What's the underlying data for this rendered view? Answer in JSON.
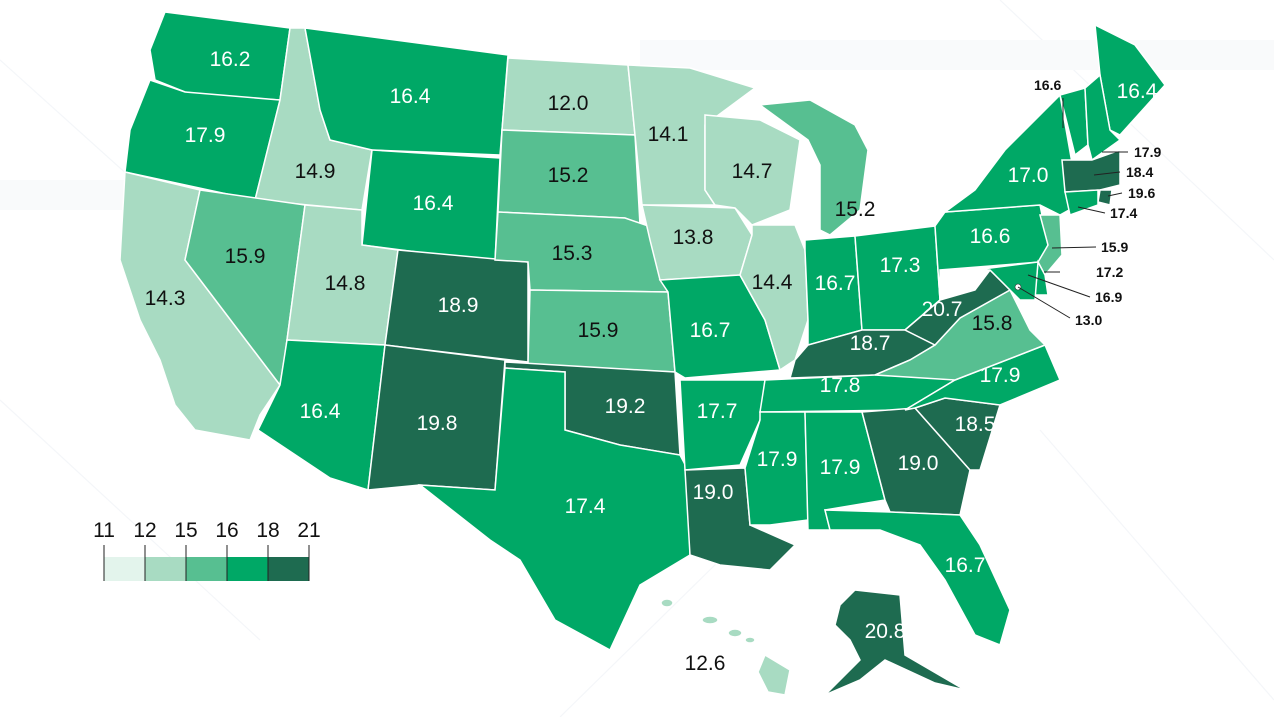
{
  "colors": {
    "c11_12": "#e3f4ec",
    "c12_15": "#a8dbc2",
    "c15_16": "#57bf91",
    "c16_18": "#00a866",
    "c18_21": "#1e6b50"
  },
  "legend": {
    "ticks": [
      "11",
      "12",
      "15",
      "16",
      "18",
      "21"
    ]
  },
  "states": {
    "WA": "16.2",
    "OR": "17.9",
    "CA": "14.3",
    "ID": "14.9",
    "NV": "15.9",
    "MT": "16.4",
    "WY": "16.4",
    "UT": "14.8",
    "AZ": "16.4",
    "CO": "18.9",
    "NM": "19.8",
    "ND": "12.0",
    "SD": "15.2",
    "NE": "15.3",
    "KS": "15.9",
    "OK": "19.2",
    "TX": "17.4",
    "MN": "14.1",
    "IA": "13.8",
    "MO": "16.7",
    "AR": "17.7",
    "LA": "19.0",
    "WI": "14.7",
    "IL": "14.4",
    "MI": "15.2",
    "IN": "16.7",
    "OH": "17.3",
    "KY": "18.7",
    "TN": "17.8",
    "MS": "17.9",
    "AL": "17.9",
    "GA": "19.0",
    "FL": "16.7",
    "SC": "18.5",
    "NC": "17.9",
    "VA": "15.8",
    "WV": "20.7",
    "PA": "16.6",
    "NY": "17.0",
    "ME": "16.4",
    "AK": "20.8",
    "HI": "12.6"
  },
  "callouts": {
    "VT": "16.6",
    "NH": "17.9",
    "MA": "18.4",
    "RI": "19.6",
    "CT": "17.4",
    "NJ": "15.9",
    "DE": "17.2",
    "MD": "16.9",
    "DC": "13.0"
  }
}
